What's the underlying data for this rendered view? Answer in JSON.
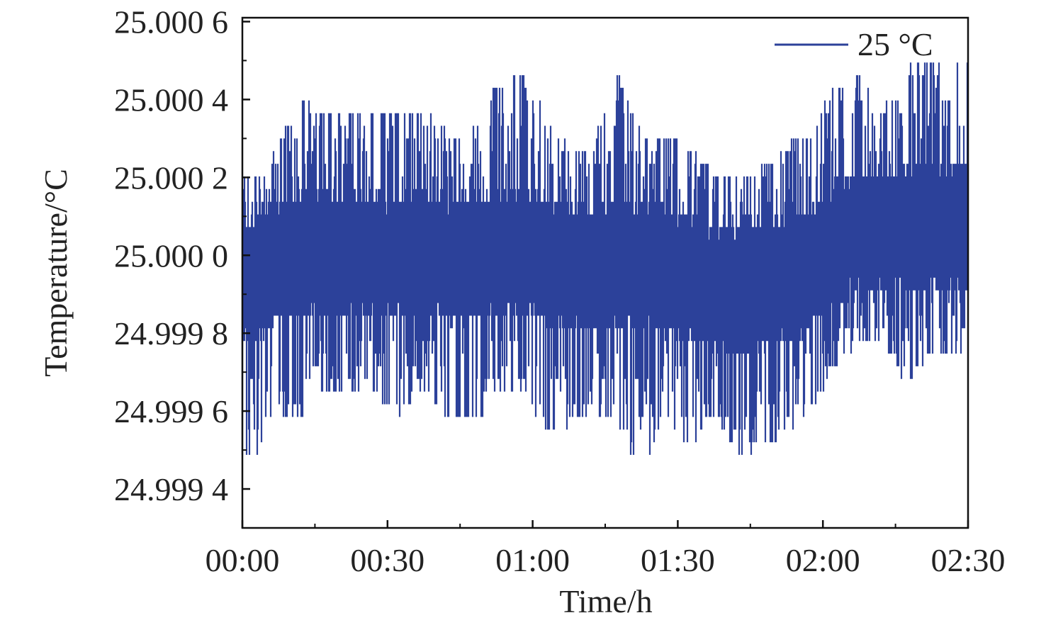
{
  "chart_data": {
    "type": "line",
    "title": "",
    "xlabel": "Time/h",
    "ylabel": "Temperature/°C",
    "xlim_minutes": [
      0,
      150
    ],
    "ylim": [
      24.9993,
      25.00061
    ],
    "x_ticks": [
      "00:00",
      "00:30",
      "01:00",
      "01:30",
      "02:00",
      "02:30"
    ],
    "x_tick_minutes": [
      0,
      30,
      60,
      90,
      120,
      150
    ],
    "y_ticks": [
      25.0006,
      25.0004,
      25.0002,
      25.0,
      24.9998,
      24.9996,
      24.9994
    ],
    "y_tick_labels": [
      "25.000 6",
      "25.000 4",
      "25.000 2",
      "25.000 0",
      "24.999 8",
      "24.999 6",
      "24.999 4"
    ],
    "grid": false,
    "legend": {
      "position": "top-right",
      "entries": [
        "25 °C"
      ]
    },
    "series": [
      {
        "name": "25 °C",
        "color": "#2c419a",
        "note_bins": "5-minute bins (start minute), binned envelope of the dense trace",
        "bin_start_minutes": [
          0,
          5,
          10,
          15,
          20,
          25,
          30,
          35,
          40,
          45,
          50,
          55,
          60,
          65,
          70,
          75,
          80,
          85,
          90,
          95,
          100,
          105,
          110,
          115,
          120,
          125,
          130,
          135,
          140,
          145
        ],
        "max": [
          25.000215,
          25.00029,
          25.0004,
          25.000365,
          25.000365,
          25.000365,
          25.000365,
          25.000365,
          25.000315,
          25.000315,
          25.00043,
          25.00046,
          25.000365,
          25.000275,
          25.00028,
          25.00046,
          25.000315,
          25.000315,
          25.000275,
          25.000215,
          25.000185,
          25.00022,
          25.00028,
          25.000315,
          25.00043,
          25.00047,
          25.00037,
          25.000485,
          25.000485,
          25.000485
        ],
        "mean": [
          24.99994,
          24.99998,
          25.0,
          25.0,
          25.0,
          25.0,
          25.0,
          25.0,
          24.99999,
          24.99999,
          25.0,
          25.00001,
          24.99999,
          24.99996,
          24.99996,
          24.99998,
          24.99997,
          24.99996,
          24.99994,
          24.99992,
          24.9999,
          24.99992,
          24.99994,
          24.99997,
          25.00003,
          25.00006,
          25.00006,
          25.00007,
          25.00007,
          25.00007
        ],
        "min": [
          24.99948,
          24.9996,
          24.99957,
          24.99964,
          24.999655,
          24.99963,
          24.9996,
          24.999665,
          24.99957,
          24.99957,
          24.99964,
          24.999665,
          24.99954,
          24.99957,
          24.9996,
          24.99957,
          24.99945,
          24.9996,
          24.99951,
          24.9996,
          24.99948,
          24.99952,
          24.999545,
          24.9996,
          24.999725,
          24.99978,
          24.99977,
          24.999665,
          24.999745,
          24.99976
        ]
      }
    ]
  }
}
